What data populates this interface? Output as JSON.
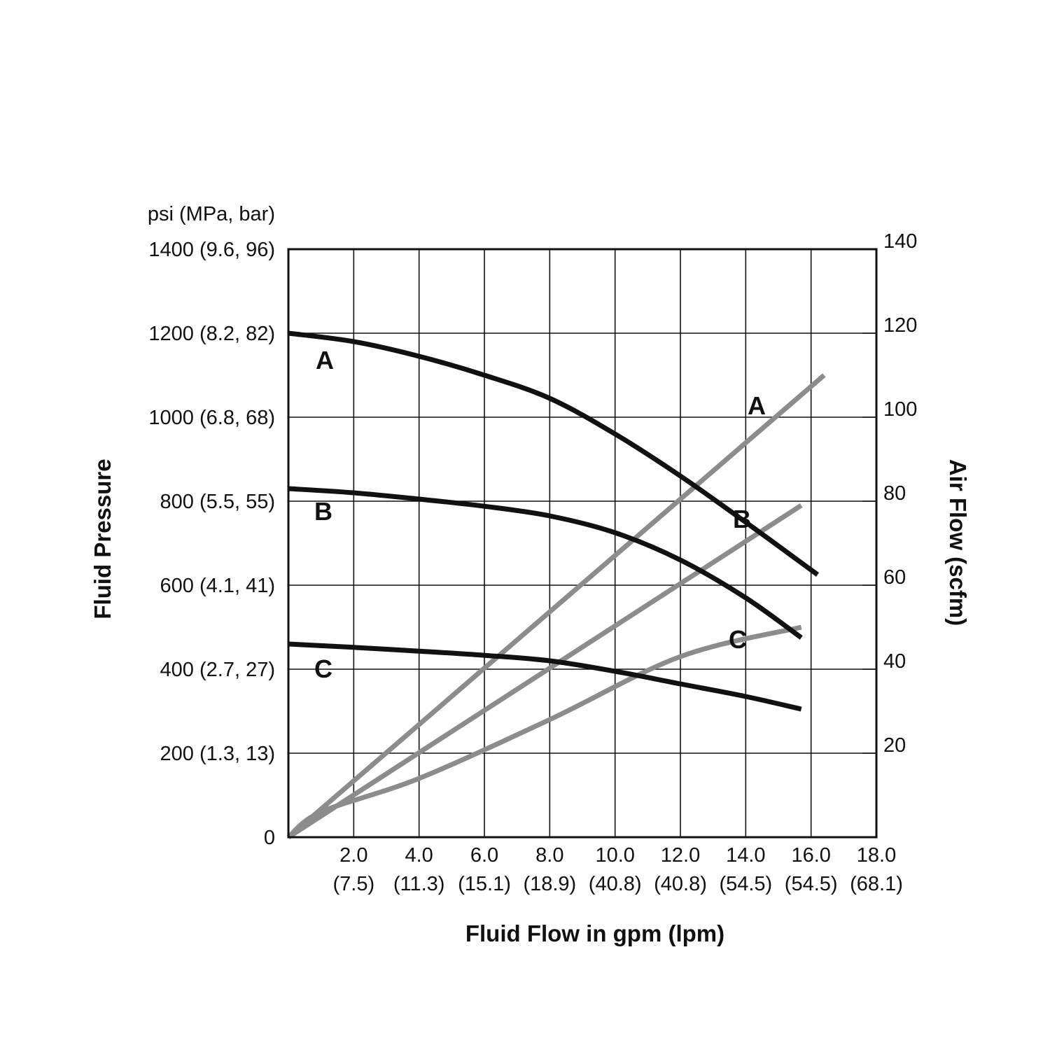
{
  "chart_data": {
    "type": "line",
    "x_axis": {
      "label": "Fluid Flow in gpm (lpm)",
      "range": [
        0,
        18
      ],
      "ticks": [
        {
          "value": 2,
          "label": "2.0",
          "sublabel": "(7.5)"
        },
        {
          "value": 4,
          "label": "4.0",
          "sublabel": "(11.3)"
        },
        {
          "value": 6,
          "label": "6.0",
          "sublabel": "(15.1)"
        },
        {
          "value": 8,
          "label": "8.0",
          "sublabel": "(18.9)"
        },
        {
          "value": 10,
          "label": "10.0",
          "sublabel": "(40.8)"
        },
        {
          "value": 12,
          "label": "12.0",
          "sublabel": "(40.8)"
        },
        {
          "value": 14,
          "label": "14.0",
          "sublabel": "(54.5)"
        },
        {
          "value": 16,
          "label": "16.0",
          "sublabel": "(54.5)"
        },
        {
          "value": 18,
          "label": "18.0",
          "sublabel": "(68.1)"
        }
      ]
    },
    "y_left_axis": {
      "label": "Fluid Pressure",
      "unit_label": "psi (MPa, bar)",
      "range": [
        0,
        1400
      ],
      "ticks": [
        {
          "value": 0,
          "label": "0"
        },
        {
          "value": 200,
          "label": "200 (1.3, 13)"
        },
        {
          "value": 400,
          "label": "400 (2.7, 27)"
        },
        {
          "value": 600,
          "label": "600 (4.1, 41)"
        },
        {
          "value": 800,
          "label": "800 (5.5, 55)"
        },
        {
          "value": 1000,
          "label": "1000 (6.8, 68)"
        },
        {
          "value": 1200,
          "label": "1200 (8.2, 82)"
        },
        {
          "value": 1400,
          "label": "1400 (9.6, 96)"
        }
      ]
    },
    "y_right_axis": {
      "label": "Air Flow (scfm)",
      "range": [
        0,
        140
      ],
      "ticks": [
        {
          "value": 20,
          "label": "20"
        },
        {
          "value": 40,
          "label": "40"
        },
        {
          "value": 60,
          "label": "60"
        },
        {
          "value": 80,
          "label": "80"
        },
        {
          "value": 100,
          "label": "100"
        },
        {
          "value": 120,
          "label": "120"
        },
        {
          "value": 140,
          "label": "140"
        }
      ]
    },
    "grid": true,
    "pressure_series": [
      {
        "name": "A",
        "color": "#111111",
        "axis": "left",
        "x": [
          0,
          2,
          4,
          6,
          8,
          10,
          12,
          14,
          16.2
        ],
        "y": [
          1200,
          1180,
          1145,
          1100,
          1045,
          960,
          860,
          750,
          625
        ]
      },
      {
        "name": "B",
        "color": "#111111",
        "axis": "left",
        "x": [
          0,
          2,
          4,
          6,
          8,
          10,
          12,
          14,
          15.7
        ],
        "y": [
          830,
          820,
          805,
          788,
          765,
          725,
          660,
          570,
          475
        ]
      },
      {
        "name": "C",
        "color": "#111111",
        "axis": "left",
        "x": [
          0,
          2,
          4,
          6,
          8,
          10,
          12,
          14,
          15.7
        ],
        "y": [
          460,
          452,
          443,
          433,
          420,
          395,
          365,
          335,
          305
        ]
      }
    ],
    "airflow_series": [
      {
        "name": "A",
        "color": "#8c8c8c",
        "axis": "right",
        "x": [
          0,
          16.4
        ],
        "y": [
          0,
          110
        ]
      },
      {
        "name": "B",
        "color": "#8c8c8c",
        "axis": "right",
        "x": [
          0,
          15.7
        ],
        "y": [
          0,
          79
        ]
      },
      {
        "name": "C",
        "color": "#8c8c8c",
        "axis": "right",
        "x": [
          0,
          1,
          4,
          8,
          12,
          15.7
        ],
        "y": [
          0,
          6,
          14,
          28,
          43,
          50
        ]
      }
    ]
  }
}
